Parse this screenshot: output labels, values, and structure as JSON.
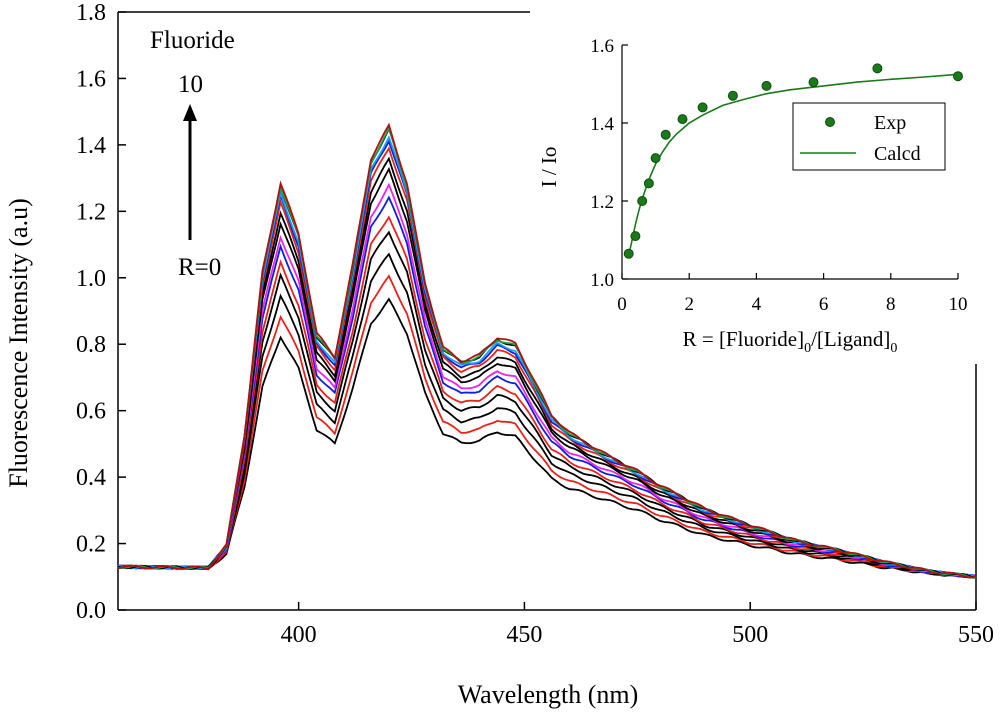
{
  "chart_data": [
    {
      "type": "line",
      "title": "",
      "xlabel": "Wavelength (nm)",
      "ylabel": "Fluorescence Intensity (a.u)",
      "xlim": [
        360,
        550
      ],
      "ylim": [
        0.0,
        1.8
      ],
      "xticks": [
        400,
        450,
        500,
        550
      ],
      "yticks": [
        0.0,
        0.2,
        0.4,
        0.6,
        0.8,
        1.0,
        1.2,
        1.4,
        1.6,
        1.8
      ],
      "grid": false,
      "annotations": {
        "analyte": "Fluoride",
        "arrow_top": "10",
        "arrow_bottom": "R=0"
      },
      "series_colors": [
        "#000000",
        "#e8221b",
        "#000000",
        "#000000",
        "#e8221b",
        "#0a1fe0",
        "#ee22ee",
        "#000000",
        "#000000",
        "#e8221b",
        "#0a1fe0",
        "#18a0ee",
        "#000000",
        "#1fa14a",
        "#b01010"
      ],
      "profile_shape": {
        "note_units": "normalized intensity vs wavelength (nm)",
        "x": [
          360,
          380,
          384,
          388,
          392,
          396,
          400,
          404,
          408,
          412,
          416,
          420,
          424,
          428,
          432,
          436,
          440,
          444,
          448,
          452,
          456,
          460,
          465,
          470,
          475,
          480,
          490,
          500,
          510,
          520,
          530,
          540,
          550
        ],
        "y": [
          0.0,
          0.0,
          0.06,
          0.35,
          0.78,
          1.0,
          0.86,
          0.6,
          0.54,
          0.78,
          1.06,
          1.16,
          1.02,
          0.76,
          0.59,
          0.55,
          0.56,
          0.6,
          0.58,
          0.49,
          0.4,
          0.36,
          0.33,
          0.3,
          0.27,
          0.23,
          0.165,
          0.125,
          0.09,
          0.065,
          0.035,
          0.012,
          0.0
        ]
      },
      "series_peaks_at_396nm": [
        0.86,
        0.92,
        0.98,
        1.04,
        1.08,
        1.13,
        1.16,
        1.2,
        1.23,
        1.26,
        1.28,
        1.29,
        1.31,
        1.31,
        1.32
      ],
      "baseline_start": 0.13,
      "baseline_end": 0.1
    },
    {
      "type": "scatter",
      "title": "",
      "xlabel": "R = [Fluoride]",
      "xlabel_sub1": "0",
      "xlabel_mid": "/[Ligand]",
      "xlabel_sub2": "0",
      "ylabel": "I / Io",
      "xlim": [
        0,
        10
      ],
      "ylim": [
        1.0,
        1.6
      ],
      "xticks": [
        0,
        2,
        4,
        6,
        8,
        10
      ],
      "yticks": [
        1.0,
        1.2,
        1.4,
        1.6
      ],
      "legend_position": "top-right",
      "series": [
        {
          "name": "Exp",
          "style": "markers",
          "color": "#1a7a1a",
          "x": [
            0.2,
            0.4,
            0.6,
            0.8,
            1.0,
            1.3,
            1.8,
            2.4,
            3.3,
            4.3,
            5.7,
            7.6,
            10.0
          ],
          "y": [
            1.065,
            1.11,
            1.2,
            1.245,
            1.31,
            1.37,
            1.41,
            1.44,
            1.47,
            1.495,
            1.505,
            1.54,
            1.52
          ]
        },
        {
          "name": "Calcd",
          "style": "line",
          "color": "#1a7a1a",
          "x": [
            0.2,
            0.3,
            0.4,
            0.5,
            0.6,
            0.7,
            0.8,
            1.0,
            1.2,
            1.4,
            1.6,
            1.8,
            2.0,
            2.4,
            3.0,
            3.6,
            4.3,
            5.0,
            6.0,
            7.0,
            8.0,
            9.0,
            10.0
          ],
          "y": [
            1.06,
            1.1,
            1.14,
            1.175,
            1.205,
            1.23,
            1.255,
            1.295,
            1.325,
            1.35,
            1.37,
            1.385,
            1.4,
            1.42,
            1.445,
            1.46,
            1.475,
            1.485,
            1.495,
            1.505,
            1.512,
            1.518,
            1.525
          ]
        }
      ]
    }
  ]
}
